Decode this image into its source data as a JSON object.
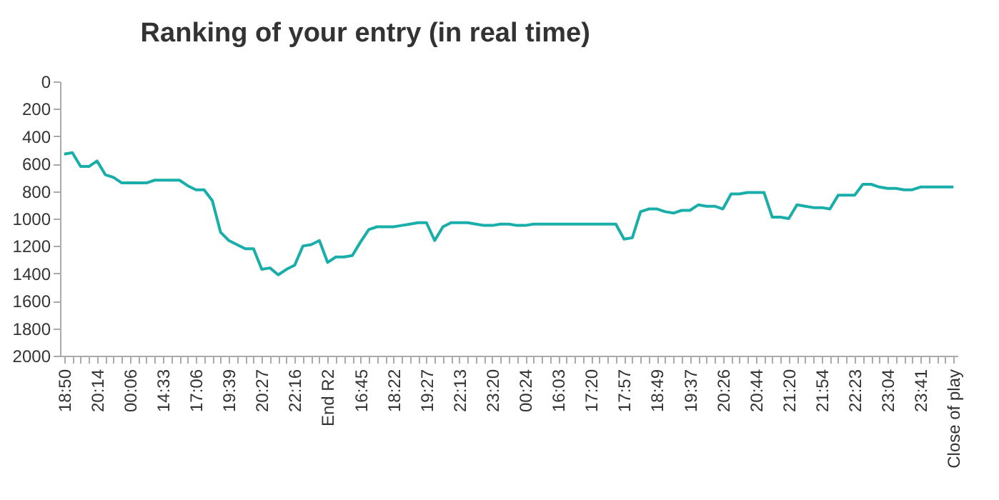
{
  "chart_data": {
    "type": "line",
    "title": "Ranking of your entry (in real time)",
    "categories": [
      "18:50",
      null,
      null,
      null,
      "20:14",
      null,
      null,
      null,
      "00:06",
      null,
      null,
      null,
      "14:33",
      null,
      null,
      null,
      "17:06",
      null,
      null,
      null,
      "19:39",
      null,
      null,
      null,
      "20:27",
      null,
      null,
      null,
      "22:16",
      null,
      null,
      null,
      "End R2",
      null,
      null,
      null,
      "16:45",
      null,
      null,
      null,
      "18:22",
      null,
      null,
      null,
      "19:27",
      null,
      null,
      null,
      "22:13",
      null,
      null,
      null,
      "23:20",
      null,
      null,
      null,
      "00:24",
      null,
      null,
      null,
      "16:03",
      null,
      null,
      null,
      "17:20",
      null,
      null,
      null,
      "17:57",
      null,
      null,
      null,
      "18:49",
      null,
      null,
      null,
      "19:37",
      null,
      null,
      null,
      "20:26",
      null,
      null,
      null,
      "20:44",
      null,
      null,
      null,
      "21:20",
      null,
      null,
      null,
      "21:54",
      null,
      null,
      null,
      "22:23",
      null,
      null,
      null,
      "23:04",
      null,
      null,
      null,
      "23:41",
      null,
      null,
      null,
      "Close of play"
    ],
    "series": [
      {
        "color": "#1aaeaa",
        "values": [
          530,
          520,
          620,
          620,
          580,
          680,
          700,
          740,
          740,
          740,
          740,
          720,
          720,
          720,
          720,
          760,
          790,
          790,
          870,
          1100,
          1160,
          1190,
          1220,
          1220,
          1370,
          1360,
          1410,
          1370,
          1340,
          1200,
          1190,
          1160,
          1320,
          1280,
          1280,
          1270,
          1170,
          1080,
          1060,
          1060,
          1060,
          1050,
          1040,
          1030,
          1030,
          1160,
          1060,
          1030,
          1030,
          1030,
          1040,
          1050,
          1050,
          1040,
          1040,
          1050,
          1050,
          1040,
          1040,
          1040,
          1040,
          1040,
          1040,
          1040,
          1040,
          1040,
          1040,
          1040,
          1150,
          1140,
          950,
          930,
          930,
          950,
          960,
          940,
          940,
          900,
          910,
          910,
          930,
          820,
          820,
          810,
          810,
          810,
          990,
          990,
          1000,
          900,
          910,
          920,
          920,
          930,
          830,
          830,
          830,
          750,
          750,
          770,
          780,
          780,
          790,
          790,
          770,
          770,
          770,
          770,
          770
        ]
      }
    ],
    "ylim": [
      2000,
      0
    ],
    "yticks": [
      0,
      200,
      400,
      600,
      800,
      1000,
      1200,
      1400,
      1600,
      1800,
      2000
    ],
    "grid": false,
    "legend": false,
    "line_style": "solid",
    "marker": "none"
  }
}
